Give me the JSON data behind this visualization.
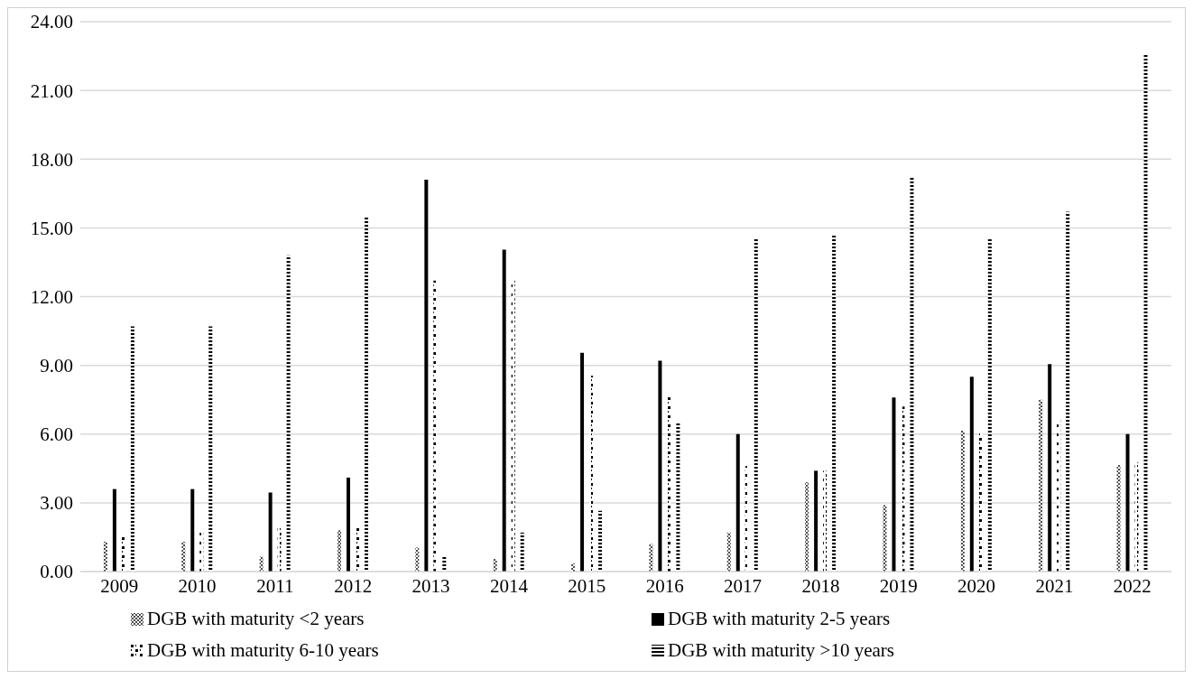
{
  "chart_data": {
    "type": "bar",
    "categories": [
      "2009",
      "2010",
      "2011",
      "2012",
      "2013",
      "2014",
      "2015",
      "2016",
      "2017",
      "2018",
      "2019",
      "2020",
      "2021",
      "2022"
    ],
    "series": [
      {
        "name": "DGB with maturity <2 years",
        "color": "#000000",
        "values": [
          1.3,
          1.3,
          0.65,
          1.8,
          1.05,
          0.55,
          0.35,
          1.2,
          1.7,
          3.9,
          2.9,
          6.15,
          7.5,
          4.65
        ]
      },
      {
        "name": "DGB with maturity 2-5 years",
        "color": "#000000",
        "values": [
          3.6,
          3.6,
          3.45,
          4.1,
          17.1,
          14.05,
          9.55,
          9.2,
          6.0,
          4.4,
          7.6,
          8.5,
          9.05,
          6.0
        ]
      },
      {
        "name": "DGB with maturity 6-10 years",
        "color": "#000000",
        "values": [
          1.5,
          1.7,
          1.9,
          1.9,
          12.7,
          12.7,
          8.55,
          7.7,
          4.6,
          4.4,
          7.2,
          6.05,
          6.65,
          4.75
        ]
      },
      {
        "name": "DGB with maturity >10 years",
        "color": "#000000",
        "values": [
          10.7,
          10.7,
          13.8,
          15.5,
          0.7,
          1.7,
          2.65,
          6.5,
          14.5,
          14.7,
          17.2,
          14.55,
          15.7,
          22.6
        ]
      }
    ],
    "ylim": [
      0,
      24
    ],
    "yticks": [
      {
        "value": 0,
        "label": "0.00"
      },
      {
        "value": 3,
        "label": "3.00"
      },
      {
        "value": 6,
        "label": "6.00"
      },
      {
        "value": 9,
        "label": "9.00"
      },
      {
        "value": 12,
        "label": "12.00"
      },
      {
        "value": 15,
        "label": "15.00"
      },
      {
        "value": 18,
        "label": "18.00"
      },
      {
        "value": 21,
        "label": "21.00"
      },
      {
        "value": 24,
        "label": "24.00"
      }
    ],
    "grid": "y",
    "legend": "bottom"
  }
}
